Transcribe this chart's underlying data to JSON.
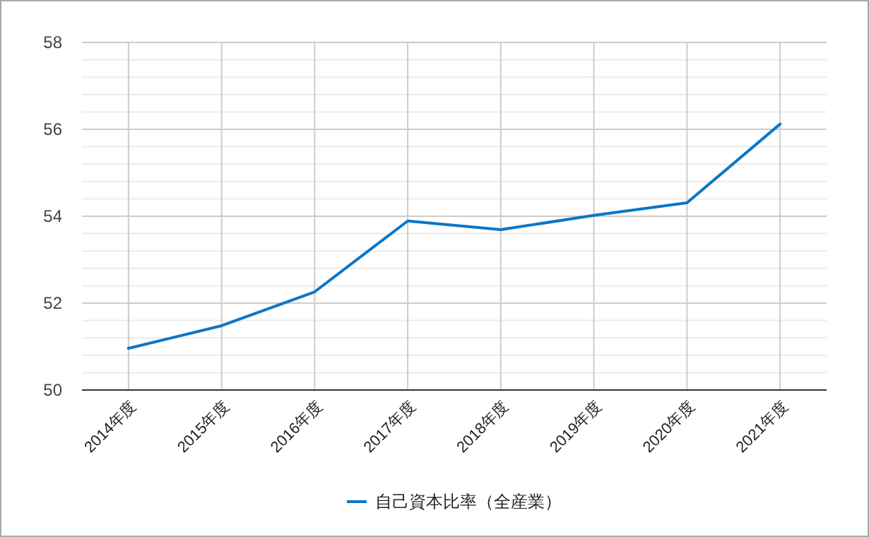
{
  "chart_data": {
    "type": "line",
    "categories": [
      "2014年度",
      "2015年度",
      "2016年度",
      "2017年度",
      "2018年度",
      "2019年度",
      "2020年度",
      "2021年度"
    ],
    "series": [
      {
        "name": "自己資本比率（全産業）",
        "color": "#0b76c8",
        "values": [
          50.96,
          51.48,
          52.26,
          53.89,
          53.69,
          54.02,
          54.31,
          56.12
        ]
      }
    ],
    "ylim": [
      50,
      58
    ],
    "yticks": [
      50,
      {
        "value": 50.4,
        "label": null
      },
      {
        "value": 50.8,
        "label": null
      },
      {
        "value": 51.2,
        "label": null
      },
      {
        "value": 51.6,
        "label": null
      },
      52,
      {
        "value": 52.4,
        "label": null
      },
      {
        "value": 52.8,
        "label": null
      },
      {
        "value": 53.2,
        "label": null
      },
      {
        "value": 53.6,
        "label": null
      },
      54,
      {
        "value": 54.4,
        "label": null
      },
      {
        "value": 54.8,
        "label": null
      },
      {
        "value": 55.2,
        "label": null
      },
      {
        "value": 55.6,
        "label": null
      },
      56,
      {
        "value": 56.4,
        "label": null
      },
      {
        "value": 56.8,
        "label": null
      },
      {
        "value": 57.2,
        "label": null
      },
      {
        "value": 57.6,
        "label": null
      },
      58
    ],
    "grid": true,
    "legend": "bottom",
    "marker": "none",
    "line_style": "solid"
  }
}
